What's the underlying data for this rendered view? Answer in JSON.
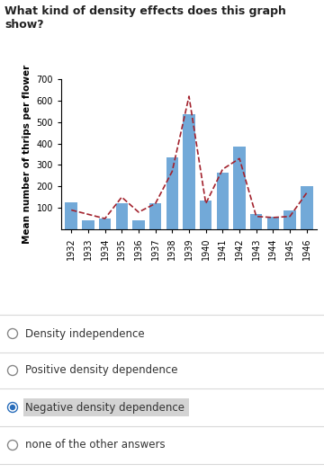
{
  "question": "What kind of density effects does this graph show?",
  "chart_data": {
    "type": "bar",
    "y_label": "Mean number of thrips per flower",
    "categories": [
      "1932",
      "1933",
      "1934",
      "1935",
      "1936",
      "1937",
      "1938",
      "1939",
      "1940",
      "1941",
      "1942",
      "1943",
      "1944",
      "1945",
      "1946"
    ],
    "series": [
      {
        "type": "bar",
        "color": "#72a9d8",
        "values": [
          125,
          40,
          50,
          120,
          40,
          120,
          335,
          535,
          135,
          265,
          385,
          70,
          60,
          90,
          200
        ]
      },
      {
        "type": "line",
        "color": "#a3232e",
        "line_style": "dashed",
        "values": [
          90,
          70,
          50,
          150,
          80,
          120,
          270,
          620,
          120,
          280,
          330,
          60,
          55,
          60,
          170
        ]
      }
    ],
    "ylim": [
      0,
      700
    ],
    "yticks": [
      100,
      200,
      300,
      400,
      500,
      600,
      700
    ],
    "grid": false
  },
  "options": [
    "Density independence",
    "Positive density dependence",
    "Negative density dependence",
    "none of the other answers"
  ],
  "selected": "Negative density dependence"
}
